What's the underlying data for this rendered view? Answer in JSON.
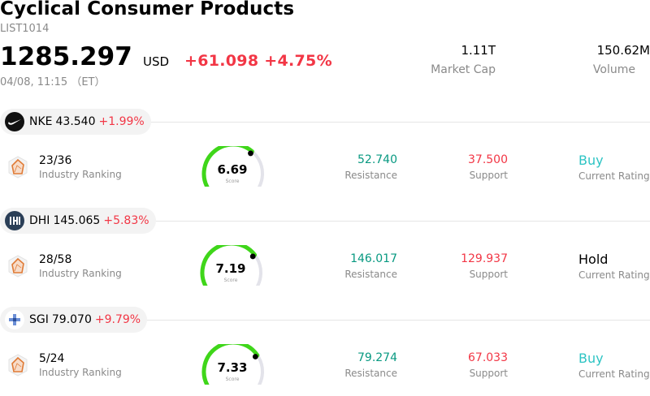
{
  "header": {
    "title": "Cyclical Consumer Products",
    "code": "LIST1014",
    "price": "1285.297",
    "currency": "USD",
    "change": "+61.098",
    "change_pct": "+4.75%",
    "time": "04/08, 11:15 （ET）",
    "stats": [
      {
        "value": "1.11T",
        "label": "Market Cap"
      },
      {
        "value": "150.62M",
        "label": "Volume"
      }
    ]
  },
  "colors": {
    "up": "#f23645",
    "resistance": "#089981",
    "support": "#f23645",
    "buy": "#2ec4c4",
    "gauge_active": "#3fd61a",
    "gauge_track": "#e3e3ea"
  },
  "stocks": [
    {
      "symbol": "NKE",
      "price": "43.540",
      "change_pct": "+1.99%",
      "logo_icon": "nike-swoosh-icon",
      "rank": "23/36",
      "rank_label": "Industry Ranking",
      "score": "6.69",
      "score_label": "Score",
      "score_fraction": 0.669,
      "resistance": "52.740",
      "resistance_label": "Resistance",
      "support": "37.500",
      "support_label": "Support",
      "rating": "Buy",
      "rating_label": "Current Rating"
    },
    {
      "symbol": "DHI",
      "price": "145.065",
      "change_pct": "+5.83%",
      "logo_icon": "dhi-logo-icon",
      "rank": "28/58",
      "rank_label": "Industry Ranking",
      "score": "7.19",
      "score_label": "Score",
      "score_fraction": 0.719,
      "resistance": "146.017",
      "resistance_label": "Resistance",
      "support": "129.937",
      "support_label": "Support",
      "rating": "Hold",
      "rating_label": "Current Rating"
    },
    {
      "symbol": "SGI",
      "price": "79.070",
      "change_pct": "+9.79%",
      "logo_icon": "sgi-cross-logo-icon",
      "rank": "5/24",
      "rank_label": "Industry Ranking",
      "score": "7.33",
      "score_label": "Score",
      "score_fraction": 0.733,
      "resistance": "79.274",
      "resistance_label": "Resistance",
      "support": "67.033",
      "support_label": "Support",
      "rating": "Buy",
      "rating_label": "Current Rating"
    }
  ]
}
